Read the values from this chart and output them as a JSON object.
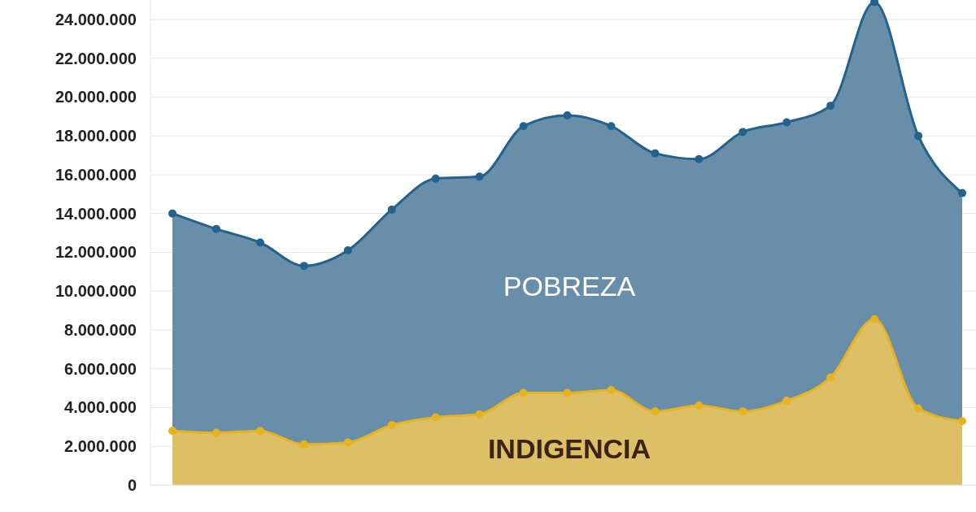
{
  "chart_data": {
    "type": "area",
    "categories": [
      null,
      null,
      null,
      null,
      null,
      null,
      null,
      null,
      null,
      null,
      null,
      null,
      null,
      null,
      null,
      null,
      null,
      null,
      null
    ],
    "series": [
      {
        "name": "POBREZA",
        "color": "#23628f",
        "values": [
          14000000,
          13200000,
          12500000,
          11300000,
          12100000,
          14200000,
          15800000,
          15900000,
          18500000,
          19050000,
          18500000,
          17100000,
          16800000,
          18200000,
          18700000,
          19550000,
          24900000,
          18000000,
          15050000
        ]
      },
      {
        "name": "INDIGENCIA",
        "color": "#e6b320",
        "values": [
          2800000,
          2700000,
          2800000,
          2100000,
          2200000,
          3100000,
          3500000,
          3650000,
          4750000,
          4750000,
          4900000,
          3800000,
          4100000,
          3800000,
          4350000,
          5550000,
          8550000,
          3950000,
          3300000
        ]
      }
    ],
    "ylim": [
      0,
      25000000
    ],
    "yticks": [
      {
        "value": 0,
        "label": "0"
      },
      {
        "value": 2000000,
        "label": "2.000.000"
      },
      {
        "value": 4000000,
        "label": "4.000.000"
      },
      {
        "value": 6000000,
        "label": "6.000.000"
      },
      {
        "value": 8000000,
        "label": "8.000.000"
      },
      {
        "value": 10000000,
        "label": "10.000.000"
      },
      {
        "value": 12000000,
        "label": "12.000.000"
      },
      {
        "value": 14000000,
        "label": "14.000.000"
      },
      {
        "value": 16000000,
        "label": "16.000.000"
      },
      {
        "value": 18000000,
        "label": "18.000.000"
      },
      {
        "value": 20000000,
        "label": "20.000.000"
      },
      {
        "value": 22000000,
        "label": "22.000.000"
      },
      {
        "value": 24000000,
        "label": "24.000.000"
      }
    ],
    "grid": "y",
    "marker": "circle",
    "line_style": "solid"
  }
}
